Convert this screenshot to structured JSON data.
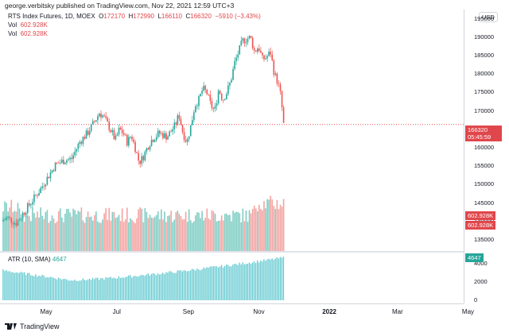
{
  "header": {
    "publisher_line": "george.verbitsky published on TradingView.com, Nov 22, 2021 12:59 UTC+3"
  },
  "legend": {
    "symbol": "RTS Index Futures, 1D, MOEX",
    "open_label": "O",
    "open": "172170",
    "high_label": "H",
    "high": "172990",
    "low_label": "L",
    "low": "166110",
    "close_label": "C",
    "close": "166320",
    "change": "−5910 (−3.43%)",
    "vol_label": "Vol",
    "vol_value": "602.928K",
    "vol2_label": "Vol",
    "vol2_value": "602.928K"
  },
  "atr_legend": {
    "label": "ATR (10, SMA)",
    "value": "4647"
  },
  "axis": {
    "currency": "USD",
    "price_ticks": [
      "195000",
      "190000",
      "185000",
      "180000",
      "175000",
      "170000",
      "165000",
      "160000",
      "155000",
      "150000",
      "145000",
      "140000",
      "135000"
    ],
    "atr_ticks": [
      "4000",
      "2000",
      "0"
    ],
    "time_ticks": [
      {
        "label": "May",
        "bold": false
      },
      {
        "label": "Jul",
        "bold": false
      },
      {
        "label": "Sep",
        "bold": false
      },
      {
        "label": "Nov",
        "bold": false
      },
      {
        "label": "2022",
        "bold": true
      },
      {
        "label": "Mar",
        "bold": false
      },
      {
        "label": "May",
        "bold": false
      }
    ],
    "price_tag": "166320",
    "countdown": "05:45:59",
    "vol_tag1": "602.928K",
    "vol_tag2": "602.928K",
    "atr_tag": "4647"
  },
  "colors": {
    "up": "#26a69a",
    "down": "#ef5350",
    "vol_up": "#7fcdc4",
    "vol_down": "#f4a3a1",
    "atr": "#5fc8cf"
  },
  "footer": {
    "brand": "TradingView"
  },
  "chart_data": {
    "type": "candlestick",
    "x_start": "2021-03-22",
    "x_end": "2021-11-22",
    "ylim": [
      132000,
      197500
    ],
    "close_path": [
      [
        0,
        140000
      ],
      [
        10,
        141000
      ],
      [
        20,
        139500
      ],
      [
        30,
        142500
      ],
      [
        40,
        145500
      ],
      [
        50,
        148500
      ],
      [
        60,
        152000
      ],
      [
        70,
        155500
      ],
      [
        80,
        156500
      ],
      [
        90,
        157000
      ],
      [
        100,
        161500
      ],
      [
        110,
        164000
      ],
      [
        120,
        167500
      ],
      [
        125,
        169500
      ],
      [
        130,
        168500
      ],
      [
        140,
        164500
      ],
      [
        145,
        162000
      ],
      [
        150,
        165000
      ],
      [
        155,
        164000
      ],
      [
        160,
        161500
      ],
      [
        165,
        163500
      ],
      [
        170,
        160000
      ],
      [
        175,
        156000
      ],
      [
        180,
        157500
      ],
      [
        185,
        160000
      ],
      [
        190,
        162000
      ],
      [
        200,
        164000
      ],
      [
        210,
        163000
      ],
      [
        220,
        166000
      ],
      [
        225,
        169000
      ],
      [
        230,
        164000
      ],
      [
        235,
        161500
      ],
      [
        240,
        166000
      ],
      [
        245,
        171500
      ],
      [
        250,
        173000
      ],
      [
        255,
        176000
      ],
      [
        260,
        175000
      ],
      [
        265,
        171500
      ],
      [
        270,
        170000
      ],
      [
        275,
        176000
      ],
      [
        280,
        173000
      ],
      [
        285,
        175000
      ],
      [
        290,
        178000
      ],
      [
        295,
        183000
      ],
      [
        300,
        186000
      ],
      [
        305,
        189000
      ],
      [
        310,
        189500
      ],
      [
        315,
        190000
      ],
      [
        320,
        186000
      ],
      [
        325,
        187500
      ],
      [
        330,
        184000
      ],
      [
        335,
        184500
      ],
      [
        340,
        186000
      ],
      [
        345,
        180000
      ],
      [
        348,
        178500
      ],
      [
        352,
        175500
      ],
      [
        355,
        170000
      ],
      [
        356,
        166320
      ]
    ],
    "atr": {
      "start": 3300,
      "dip": 2200,
      "end": 4647
    }
  }
}
